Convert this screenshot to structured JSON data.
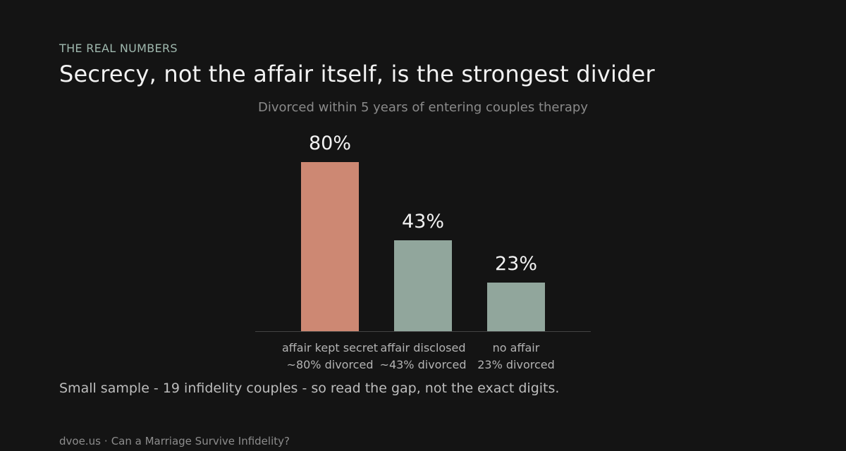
{
  "eyebrow": "THE REAL NUMBERS",
  "headline": "Secrecy, not the affair itself, is the strongest divider",
  "note": "Small sample - 19 infidelity couples - so read the gap, not the exact digits.",
  "footer": {
    "site": "dvoe.us",
    "separator": "·",
    "article": "Can a Marriage Survive Infidelity?"
  },
  "colors": {
    "background": "#141414",
    "highlight": "#cd8873",
    "muted": "#91a69c",
    "eyebrow": "#9fb8ae",
    "axis": "#444444",
    "subtitle": "#8a8a8a",
    "category_text": "#b3b3b3",
    "value_text": "#f2f2f2"
  },
  "chart_data": {
    "type": "bar",
    "title": "Divorced within 5 years of entering couples therapy",
    "xlabel": "",
    "ylabel": "",
    "ylim": [
      0,
      100
    ],
    "grid": false,
    "categories": [
      "affair kept secret",
      "affair disclosed",
      "no affair"
    ],
    "category_sublabels": [
      "~80% divorced",
      "~43% divorced",
      "23% divorced"
    ],
    "values": [
      80,
      43,
      23
    ],
    "value_labels": [
      "80%",
      "43%",
      "23%"
    ],
    "highlight": [
      true,
      false,
      false
    ]
  }
}
